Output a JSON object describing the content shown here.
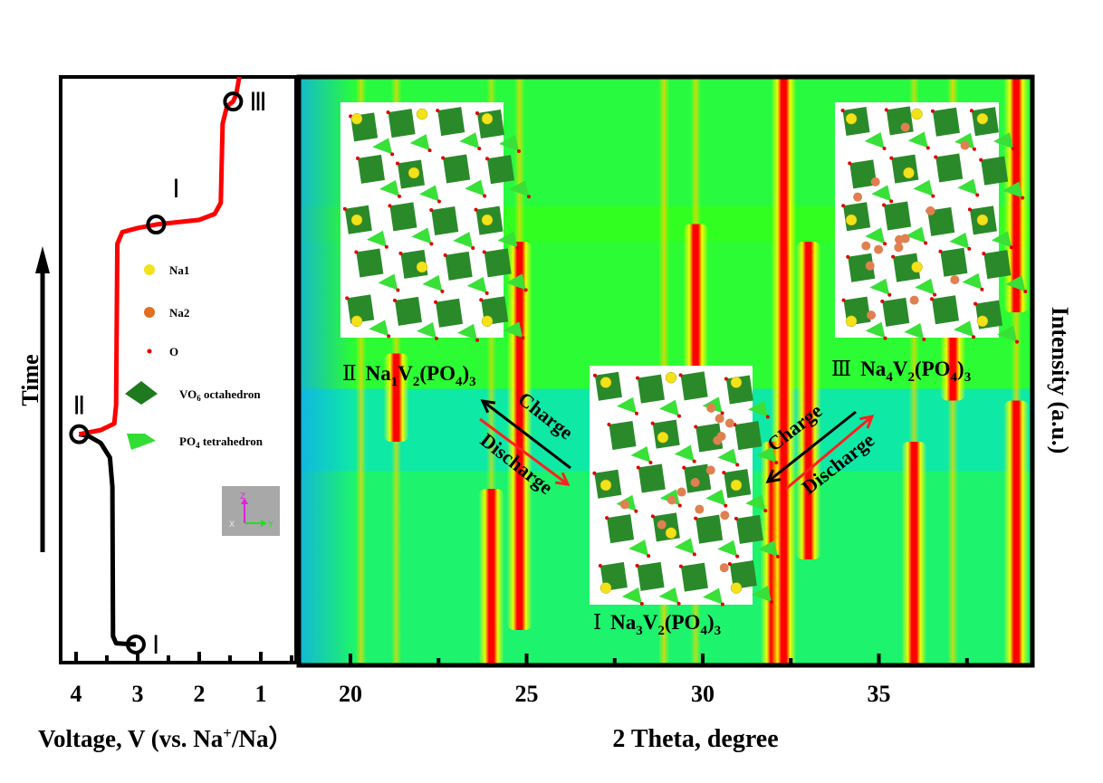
{
  "chart_data": [
    {
      "type": "line",
      "panel": "voltage-profile",
      "xlabel": {
        "main": "Voltage, V (vs. Na",
        "sup": "+",
        "tail": "/Na）"
      },
      "ylabel": "Time",
      "xlim": [
        4.25,
        0.45
      ],
      "x_reversed": true,
      "xticks": [
        "4",
        "3",
        "2",
        "1"
      ],
      "xtick_values": [
        4,
        3,
        2,
        1
      ],
      "ylim": [
        0,
        100
      ],
      "series": [
        {
          "color": "#000000",
          "points": [
            [
              3.03,
              3.1
            ],
            [
              3.35,
              3.3
            ],
            [
              3.4,
              4.5
            ],
            [
              3.41,
              30
            ],
            [
              3.45,
              35
            ],
            [
              3.6,
              37.5
            ],
            [
              3.8,
              38.7
            ],
            [
              3.95,
              39
            ]
          ]
        },
        {
          "color": "#ff0000",
          "points": [
            [
              3.95,
              39
            ],
            [
              3.6,
              39.7
            ],
            [
              3.38,
              40.8
            ],
            [
              3.35,
              44
            ],
            [
              3.33,
              71.5
            ],
            [
              3.25,
              73.5
            ],
            [
              3.0,
              74.2
            ],
            [
              2.7,
              74.8
            ],
            [
              2.0,
              75.6
            ],
            [
              1.75,
              76.6
            ],
            [
              1.65,
              78.5
            ],
            [
              1.62,
              92
            ],
            [
              1.55,
              95
            ],
            [
              1.45,
              95.8
            ],
            [
              1.4,
              97
            ],
            [
              1.35,
              100
            ]
          ]
        }
      ],
      "markers": [
        {
          "label": "Ⅰ",
          "v": 3.03,
          "t": 3.1
        },
        {
          "label": "Ⅱ",
          "v": 3.95,
          "t": 39
        },
        {
          "label": "Ⅰ",
          "v": 2.7,
          "t": 74.8
        },
        {
          "label": "Ⅲ",
          "v": 1.45,
          "t": 95.8
        }
      ],
      "legend": [
        {
          "label": "Na1",
          "icon": "yellow-sphere",
          "color": "#f2e21a"
        },
        {
          "label": "Na2",
          "icon": "orange-sphere",
          "color": "#e07020"
        },
        {
          "label": "O",
          "icon": "red-dot",
          "color": "#e00000"
        },
        {
          "label": "VO",
          "sub": "6",
          "tail": " octahedron",
          "icon": "octahedron",
          "color": "#1f7a1f"
        },
        {
          "label": "PO",
          "sub": "4",
          "tail": " tetrahedron",
          "icon": "tetrahedron",
          "color": "#33dd33"
        }
      ],
      "axes_triad": {
        "z": "Z",
        "y": "Y",
        "x": "X"
      }
    },
    {
      "type": "heatmap",
      "panel": "in-situ-xrd",
      "xlabel": "2 Theta, degree",
      "ylabel": "Intensity (a.u.)",
      "xlim": [
        18.5,
        39.3
      ],
      "xticks": [
        "20",
        "25",
        "30",
        "35"
      ],
      "xtick_values": [
        20,
        25,
        30,
        35
      ],
      "ylim": [
        0,
        100
      ],
      "colormap": [
        "#00a0ff",
        "#00e8d8",
        "#20ff20",
        "#ffff00",
        "#ff0000"
      ],
      "background_bands": [
        {
          "t": [
            0,
            33
          ],
          "level": 0.3
        },
        {
          "t": [
            33,
            47
          ],
          "level": 0.15
        },
        {
          "t": [
            47,
            72
          ],
          "level": 0.45
        },
        {
          "t": [
            72,
            78
          ],
          "level": 0.5
        },
        {
          "t": [
            78,
            100
          ],
          "level": 0.42
        }
      ],
      "peaks": [
        {
          "two_theta": 20.3,
          "segments": [
            {
              "t": [
                0,
                100
              ],
              "i": 0.6
            }
          ]
        },
        {
          "two_theta": 21.3,
          "segments": [
            {
              "t": [
                0,
                38
              ],
              "i": 0.55
            },
            {
              "t": [
                38,
                53
              ],
              "i": 1
            },
            {
              "t": [
                53,
                100
              ],
              "i": 0.6
            }
          ]
        },
        {
          "two_theta": 24.0,
          "segments": [
            {
              "t": [
                0,
                30
              ],
              "i": 1
            },
            {
              "t": [
                30,
                100
              ],
              "i": 0.5
            }
          ]
        },
        {
          "two_theta": 24.8,
          "segments": [
            {
              "t": [
                6,
                72
              ],
              "i": 1
            },
            {
              "t": [
                72,
                100
              ],
              "i": 0.6
            }
          ]
        },
        {
          "two_theta": 28.9,
          "segments": [
            {
              "t": [
                0,
                100
              ],
              "i": 0.65
            }
          ]
        },
        {
          "two_theta": 29.8,
          "segments": [
            {
              "t": [
                0,
                45
              ],
              "i": 0.55
            },
            {
              "t": [
                45,
                75
              ],
              "i": 0.95
            },
            {
              "t": [
                75,
                100
              ],
              "i": 0.6
            }
          ]
        },
        {
          "two_theta": 32.0,
          "segments": [
            {
              "t": [
                0,
                38
              ],
              "i": 1
            }
          ]
        },
        {
          "two_theta": 32.3,
          "segments": [
            {
              "t": [
                0,
                100
              ],
              "i": 1
            }
          ]
        },
        {
          "two_theta": 33.0,
          "segments": [
            {
              "t": [
                18,
                72
              ],
              "i": 1
            }
          ]
        },
        {
          "two_theta": 36.0,
          "segments": [
            {
              "t": [
                0,
                38
              ],
              "i": 1
            },
            {
              "t": [
                38,
                100
              ],
              "i": 0.55
            }
          ]
        },
        {
          "two_theta": 37.1,
          "segments": [
            {
              "t": [
                0,
                45
              ],
              "i": 0.6
            },
            {
              "t": [
                45,
                62
              ],
              "i": 0.95
            },
            {
              "t": [
                62,
                100
              ],
              "i": 0.7
            }
          ]
        },
        {
          "two_theta": 38.9,
          "segments": [
            {
              "t": [
                0,
                45
              ],
              "i": 0.95
            },
            {
              "t": [
                45,
                60
              ],
              "i": 0.6
            },
            {
              "t": [
                60,
                100
              ],
              "i": 0.95
            }
          ]
        }
      ],
      "phases": [
        {
          "numeral": "Ⅱ",
          "formula": [
            "Na",
            "1",
            "V",
            "2",
            "(PO",
            "4",
            ")",
            "3"
          ]
        },
        {
          "numeral": "Ⅲ",
          "formula": [
            "Na",
            "4",
            "V",
            "2",
            "(PO",
            "4",
            ")",
            "3"
          ]
        },
        {
          "numeral": "Ⅰ",
          "formula": [
            "Na",
            "3",
            "V",
            "2",
            "(PO",
            "4",
            ")",
            "3"
          ]
        }
      ],
      "arrows": {
        "charge": "Charge",
        "discharge": "Discharge",
        "charge_color": "#000000",
        "discharge_color": "#ff2020"
      }
    }
  ]
}
